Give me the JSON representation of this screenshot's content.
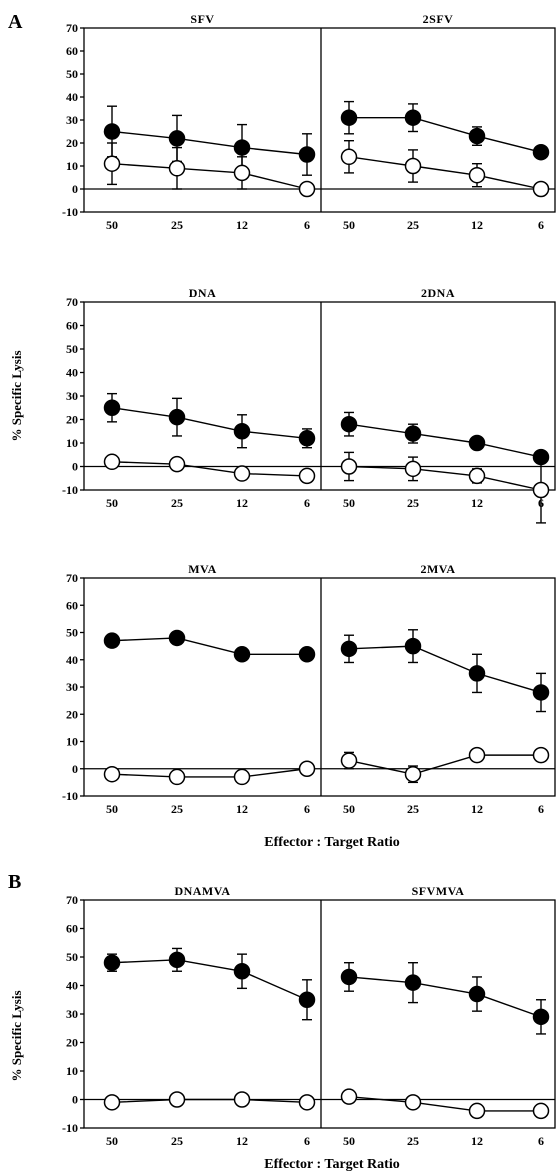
{
  "figure": {
    "panel_labels": [
      "A",
      "B"
    ],
    "ylabel": "% Specific Lysis",
    "xlabel": "Effector : Target Ratio"
  },
  "chart_data": [
    {
      "type": "line",
      "title": "SFV",
      "categories": [
        "50",
        "25",
        "12",
        "6"
      ],
      "ylim": [
        -10,
        70
      ],
      "yticks": [
        "-10",
        "0",
        "10",
        "20",
        "30",
        "40",
        "50",
        "60",
        "70"
      ],
      "series": [
        {
          "marker": "filled",
          "values": [
            25,
            22,
            18,
            15
          ],
          "errors": [
            11,
            10,
            10,
            9
          ]
        },
        {
          "marker": "open",
          "values": [
            11,
            9,
            7,
            0
          ],
          "errors": [
            9,
            9,
            7,
            0
          ]
        }
      ]
    },
    {
      "type": "line",
      "title": "2SFV",
      "categories": [
        "50",
        "25",
        "12",
        "6"
      ],
      "ylim": [
        -10,
        70
      ],
      "series": [
        {
          "marker": "filled",
          "values": [
            31,
            31,
            23,
            16
          ],
          "errors": [
            7,
            6,
            4,
            2
          ]
        },
        {
          "marker": "open",
          "values": [
            14,
            10,
            6,
            0
          ],
          "errors": [
            7,
            7,
            5,
            0
          ]
        }
      ]
    },
    {
      "type": "line",
      "title": "DNA",
      "categories": [
        "50",
        "25",
        "12",
        "6"
      ],
      "ylim": [
        -10,
        70
      ],
      "yticks": [
        "-10",
        "0",
        "10",
        "20",
        "30",
        "40",
        "50",
        "60",
        "70"
      ],
      "series": [
        {
          "marker": "filled",
          "values": [
            25,
            21,
            15,
            12
          ],
          "errors": [
            6,
            8,
            7,
            4
          ]
        },
        {
          "marker": "open",
          "values": [
            2,
            1,
            -3,
            -4
          ],
          "errors": [
            2,
            0,
            0,
            0
          ]
        }
      ]
    },
    {
      "type": "line",
      "title": "2DNA",
      "categories": [
        "50",
        "25",
        "12",
        "6"
      ],
      "ylim": [
        -10,
        70
      ],
      "series": [
        {
          "marker": "filled",
          "values": [
            18,
            14,
            10,
            4
          ],
          "errors": [
            5,
            4,
            1,
            0
          ]
        },
        {
          "marker": "open",
          "values": [
            0,
            -1,
            -4,
            -10
          ],
          "errors": [
            6,
            5,
            3,
            14
          ]
        }
      ]
    },
    {
      "type": "line",
      "title": "MVA",
      "categories": [
        "50",
        "25",
        "12",
        "6"
      ],
      "ylim": [
        -10,
        70
      ],
      "yticks": [
        "-10",
        "0",
        "10",
        "20",
        "30",
        "40",
        "50",
        "60",
        "70"
      ],
      "series": [
        {
          "marker": "filled",
          "values": [
            47,
            48,
            42,
            42
          ],
          "errors": [
            0,
            0,
            0,
            0
          ]
        },
        {
          "marker": "open",
          "values": [
            -2,
            -3,
            -3,
            0
          ],
          "errors": [
            0,
            0,
            0,
            0
          ]
        }
      ]
    },
    {
      "type": "line",
      "title": "2MVA",
      "categories": [
        "50",
        "25",
        "12",
        "6"
      ],
      "ylim": [
        -10,
        70
      ],
      "series": [
        {
          "marker": "filled",
          "values": [
            44,
            45,
            35,
            28
          ],
          "errors": [
            5,
            6,
            7,
            7
          ]
        },
        {
          "marker": "open",
          "values": [
            3,
            -2,
            5,
            5
          ],
          "errors": [
            3,
            3,
            0,
            0
          ]
        }
      ]
    },
    {
      "type": "line",
      "title": "DNAMVA",
      "categories": [
        "50",
        "25",
        "12",
        "6"
      ],
      "ylim": [
        -10,
        70
      ],
      "yticks": [
        "-10",
        "0",
        "10",
        "20",
        "30",
        "40",
        "50",
        "60",
        "70"
      ],
      "series": [
        {
          "marker": "filled",
          "values": [
            48,
            49,
            45,
            35
          ],
          "errors": [
            3,
            4,
            6,
            7
          ]
        },
        {
          "marker": "open",
          "values": [
            -1,
            0,
            0,
            -1
          ],
          "errors": [
            2,
            0,
            0,
            2
          ]
        }
      ]
    },
    {
      "type": "line",
      "title": "SFVMVA",
      "categories": [
        "50",
        "25",
        "12",
        "6"
      ],
      "ylim": [
        -10,
        70
      ],
      "series": [
        {
          "marker": "filled",
          "values": [
            43,
            41,
            37,
            29
          ],
          "errors": [
            5,
            7,
            6,
            6
          ]
        },
        {
          "marker": "open",
          "values": [
            1,
            -1,
            -4,
            -4
          ],
          "errors": [
            2,
            2,
            0,
            0
          ]
        }
      ]
    }
  ]
}
